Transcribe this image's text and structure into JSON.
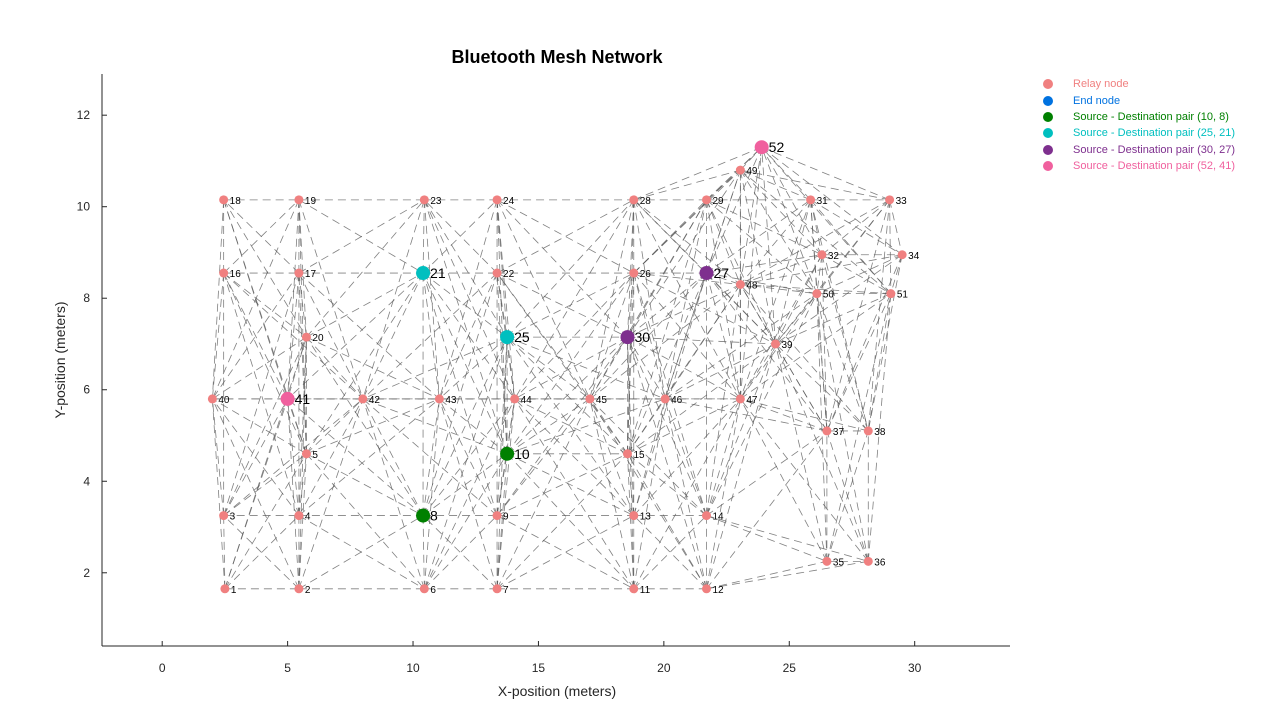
{
  "chart_data": {
    "type": "scatter",
    "title": "Bluetooth Mesh Network",
    "xlabel": "X-position (meters)",
    "ylabel": "Y-position (meters)",
    "xlim": [
      -2.4,
      33.8
    ],
    "ylim": [
      0.4,
      12.9
    ],
    "xticks": [
      0,
      5,
      10,
      15,
      20,
      25,
      30
    ],
    "yticks": [
      2,
      4,
      6,
      8,
      10,
      12
    ],
    "legend_position": "outside-top-right",
    "legend": [
      {
        "label": "Relay node",
        "color": "#f08080"
      },
      {
        "label": "End node",
        "color": "#0072e0"
      },
      {
        "label": "Source - Destination pair (10, 8)",
        "color": "#008000"
      },
      {
        "label": "Source - Destination pair (25, 21)",
        "color": "#00bfbf"
      },
      {
        "label": "Source - Destination pair (30, 27)",
        "color": "#7e2f8e"
      },
      {
        "label": "Source - Destination pair (52, 41)",
        "color": "#f0609e"
      }
    ],
    "nodes": [
      {
        "id": 1,
        "x": 2.5,
        "y": 1.65,
        "role": "relay"
      },
      {
        "id": 2,
        "x": 5.45,
        "y": 1.65,
        "role": "relay"
      },
      {
        "id": 3,
        "x": 2.45,
        "y": 3.25,
        "role": "relay"
      },
      {
        "id": 4,
        "x": 5.45,
        "y": 3.25,
        "role": "relay"
      },
      {
        "id": 5,
        "x": 5.75,
        "y": 4.6,
        "role": "relay"
      },
      {
        "id": 6,
        "x": 10.45,
        "y": 1.65,
        "role": "relay"
      },
      {
        "id": 7,
        "x": 13.35,
        "y": 1.65,
        "role": "relay"
      },
      {
        "id": 8,
        "x": 10.4,
        "y": 3.25,
        "role": "pair1"
      },
      {
        "id": 9,
        "x": 13.35,
        "y": 3.25,
        "role": "relay"
      },
      {
        "id": 10,
        "x": 13.75,
        "y": 4.6,
        "role": "pair1"
      },
      {
        "id": 11,
        "x": 18.8,
        "y": 1.65,
        "role": "relay"
      },
      {
        "id": 12,
        "x": 21.7,
        "y": 1.65,
        "role": "relay"
      },
      {
        "id": 13,
        "x": 18.8,
        "y": 3.25,
        "role": "relay"
      },
      {
        "id": 14,
        "x": 21.7,
        "y": 3.25,
        "role": "relay"
      },
      {
        "id": 15,
        "x": 18.55,
        "y": 4.6,
        "role": "relay"
      },
      {
        "id": 16,
        "x": 2.45,
        "y": 8.55,
        "role": "relay"
      },
      {
        "id": 17,
        "x": 5.45,
        "y": 8.55,
        "role": "relay"
      },
      {
        "id": 18,
        "x": 2.45,
        "y": 10.15,
        "role": "relay"
      },
      {
        "id": 19,
        "x": 5.45,
        "y": 10.15,
        "role": "relay"
      },
      {
        "id": 20,
        "x": 5.75,
        "y": 7.15,
        "role": "relay"
      },
      {
        "id": 21,
        "x": 10.4,
        "y": 8.55,
        "role": "pair2"
      },
      {
        "id": 22,
        "x": 13.35,
        "y": 8.55,
        "role": "relay"
      },
      {
        "id": 23,
        "x": 10.45,
        "y": 10.15,
        "role": "relay"
      },
      {
        "id": 24,
        "x": 13.35,
        "y": 10.15,
        "role": "relay"
      },
      {
        "id": 25,
        "x": 13.75,
        "y": 7.15,
        "role": "pair2"
      },
      {
        "id": 26,
        "x": 18.8,
        "y": 8.55,
        "role": "relay"
      },
      {
        "id": 27,
        "x": 21.7,
        "y": 8.55,
        "role": "pair3"
      },
      {
        "id": 28,
        "x": 18.8,
        "y": 10.15,
        "role": "relay"
      },
      {
        "id": 29,
        "x": 21.7,
        "y": 10.15,
        "role": "relay"
      },
      {
        "id": 30,
        "x": 18.55,
        "y": 7.15,
        "role": "pair3"
      },
      {
        "id": 31,
        "x": 25.85,
        "y": 10.15,
        "role": "relay"
      },
      {
        "id": 32,
        "x": 26.3,
        "y": 8.95,
        "role": "relay"
      },
      {
        "id": 33,
        "x": 29.0,
        "y": 10.15,
        "role": "relay"
      },
      {
        "id": 34,
        "x": 29.5,
        "y": 8.95,
        "role": "relay"
      },
      {
        "id": 35,
        "x": 26.5,
        "y": 2.25,
        "role": "relay"
      },
      {
        "id": 36,
        "x": 28.15,
        "y": 2.25,
        "role": "relay"
      },
      {
        "id": 37,
        "x": 26.5,
        "y": 5.1,
        "role": "relay"
      },
      {
        "id": 38,
        "x": 28.15,
        "y": 5.1,
        "role": "relay"
      },
      {
        "id": 39,
        "x": 24.45,
        "y": 7.0,
        "role": "relay"
      },
      {
        "id": 40,
        "x": 2.0,
        "y": 5.8,
        "role": "relay"
      },
      {
        "id": 41,
        "x": 5.0,
        "y": 5.8,
        "role": "pair4"
      },
      {
        "id": 42,
        "x": 8.0,
        "y": 5.8,
        "role": "relay"
      },
      {
        "id": 43,
        "x": 11.05,
        "y": 5.8,
        "role": "relay"
      },
      {
        "id": 44,
        "x": 14.05,
        "y": 5.8,
        "role": "relay"
      },
      {
        "id": 45,
        "x": 17.05,
        "y": 5.8,
        "role": "relay"
      },
      {
        "id": 46,
        "x": 20.05,
        "y": 5.8,
        "role": "relay"
      },
      {
        "id": 47,
        "x": 23.05,
        "y": 5.8,
        "role": "relay"
      },
      {
        "id": 48,
        "x": 23.05,
        "y": 8.3,
        "role": "relay"
      },
      {
        "id": 49,
        "x": 23.05,
        "y": 10.8,
        "role": "relay"
      },
      {
        "id": 50,
        "x": 26.1,
        "y": 8.1,
        "role": "relay"
      },
      {
        "id": 51,
        "x": 29.05,
        "y": 8.1,
        "role": "relay"
      },
      {
        "id": 52,
        "x": 23.9,
        "y": 11.3,
        "role": "pair4"
      }
    ]
  },
  "colors": {
    "relay": "#f08080",
    "end": "#0072e0",
    "pair1": "#008000",
    "pair2": "#00bfbf",
    "pair3": "#7e2f8e",
    "pair4": "#f0609e",
    "edge": "#555555",
    "axis": "#262626"
  }
}
